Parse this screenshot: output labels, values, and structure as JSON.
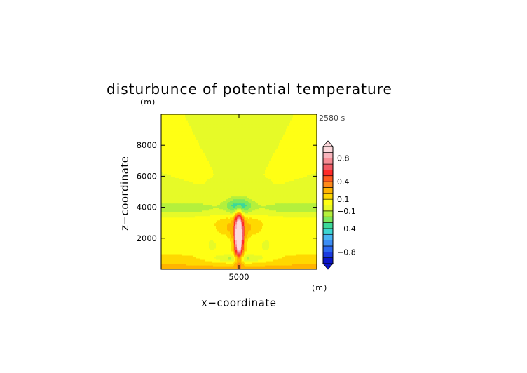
{
  "chart_data": {
    "type": "heatmap",
    "title": "disturbunce of potential temperature",
    "xlabel": "x−coordinate",
    "ylabel": "z−coordinate",
    "x_unit": "(m)",
    "z_unit": "(m)",
    "time_label": "2580 s",
    "xlim": [
      0,
      10000
    ],
    "zlim": [
      0,
      10000
    ],
    "x_ticks": [
      {
        "value": 5000,
        "label": "5000"
      }
    ],
    "z_ticks": [
      {
        "value": 2000,
        "label": "2000"
      },
      {
        "value": 4000,
        "label": "4000"
      },
      {
        "value": 6000,
        "label": "6000"
      },
      {
        "value": 8000,
        "label": "8000"
      }
    ],
    "colorbar": {
      "levels": [
        -1.0,
        -0.9,
        -0.8,
        -0.7,
        -0.6,
        -0.5,
        -0.4,
        -0.3,
        -0.2,
        -0.1,
        0.0,
        0.1,
        0.2,
        0.3,
        0.4,
        0.5,
        0.6,
        0.7,
        0.8,
        0.9,
        1.0
      ],
      "colors": [
        "#0a14c8",
        "#1a3ae0",
        "#2a66f0",
        "#3b8cf5",
        "#48b4f2",
        "#3cd6d2",
        "#3cd89a",
        "#7de85c",
        "#b4f03c",
        "#e6fa28",
        "#ffff14",
        "#ffd800",
        "#ffb400",
        "#ff8a1a",
        "#ff5a1e",
        "#ff2a28",
        "#f05a64",
        "#f58c94",
        "#f8b4bc",
        "#fcd8dc"
      ],
      "extend": "both",
      "tick_labels": [
        {
          "value": 0.8,
          "label": "0.8"
        },
        {
          "value": 0.4,
          "label": "0.4"
        },
        {
          "value": 0.1,
          "label": "0.1"
        },
        {
          "value": -0.1,
          "label": "−0.1"
        },
        {
          "value": -0.4,
          "label": "−0.4"
        },
        {
          "value": -0.8,
          "label": "−0.8"
        }
      ]
    }
  }
}
